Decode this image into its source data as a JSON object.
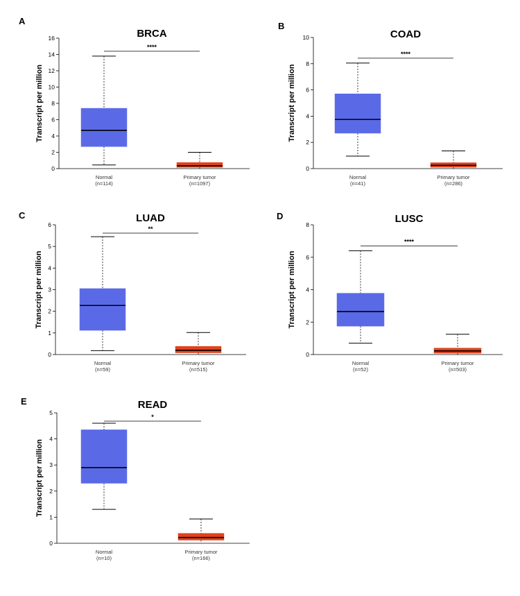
{
  "chart_data": [
    {
      "panel": "A",
      "type": "box",
      "title": "BRCA",
      "ylabel": "Transcript per million",
      "ylim": [
        0,
        16
      ],
      "yticks": [
        0,
        2,
        4,
        6,
        8,
        10,
        12,
        14,
        16
      ],
      "significance": "****",
      "colors": [
        "#5a6ae6",
        "#e0421c"
      ],
      "groups": [
        {
          "name": "Normal",
          "n": "(n=114)",
          "min": 0.45,
          "q1": 2.7,
          "median": 4.7,
          "q3": 7.4,
          "max": 13.8
        },
        {
          "name": "Primary tumor",
          "n": "(n=1097)",
          "min": 0.0,
          "q1": 0.15,
          "median": 0.35,
          "q3": 0.75,
          "max": 2.0
        }
      ]
    },
    {
      "panel": "B",
      "type": "box",
      "title": "COAD",
      "ylabel": "Transcript per million",
      "ylim": [
        0,
        10
      ],
      "yticks": [
        0,
        2,
        4,
        6,
        8,
        10
      ],
      "significance": "****",
      "colors": [
        "#5a6ae6",
        "#e0421c"
      ],
      "groups": [
        {
          "name": "Normal",
          "n": "(n=41)",
          "min": 0.95,
          "q1": 2.7,
          "median": 3.75,
          "q3": 5.7,
          "max": 8.05
        },
        {
          "name": "Primary tumor",
          "n": "(n=286)",
          "min": 0.0,
          "q1": 0.1,
          "median": 0.25,
          "q3": 0.45,
          "max": 1.35
        }
      ]
    },
    {
      "panel": "C",
      "type": "box",
      "title": "LUAD",
      "ylabel": "Transcript per million",
      "ylim": [
        0,
        6
      ],
      "yticks": [
        0,
        1,
        2,
        3,
        4,
        5,
        6
      ],
      "significance": "**",
      "colors": [
        "#5a6ae6",
        "#e0421c"
      ],
      "groups": [
        {
          "name": "Normal",
          "n": "(n=59)",
          "min": 0.18,
          "q1": 1.12,
          "median": 2.27,
          "q3": 3.05,
          "max": 5.45
        },
        {
          "name": "Primary tumor",
          "n": "(n=515)",
          "min": 0.0,
          "q1": 0.08,
          "median": 0.2,
          "q3": 0.38,
          "max": 1.02
        }
      ]
    },
    {
      "panel": "D",
      "type": "box",
      "title": "LUSC",
      "ylabel": "Transcript per million",
      "ylim": [
        0,
        8
      ],
      "yticks": [
        0,
        2,
        4,
        6,
        8
      ],
      "significance": "****",
      "colors": [
        "#5a6ae6",
        "#e0421c"
      ],
      "groups": [
        {
          "name": "Normal",
          "n": "(n=52)",
          "min": 0.7,
          "q1": 1.75,
          "median": 2.65,
          "q3": 3.78,
          "max": 6.4
        },
        {
          "name": "Primary tumor",
          "n": "(n=503)",
          "min": 0.0,
          "q1": 0.08,
          "median": 0.22,
          "q3": 0.4,
          "max": 1.25
        }
      ]
    },
    {
      "panel": "E",
      "type": "box",
      "title": "READ",
      "ylabel": "Transcript per million",
      "ylim": [
        0,
        5
      ],
      "yticks": [
        0,
        1,
        2,
        3,
        4,
        5
      ],
      "significance": "*",
      "colors": [
        "#5a6ae6",
        "#e0421c"
      ],
      "groups": [
        {
          "name": "Normal",
          "n": "(n=10)",
          "min": 1.3,
          "q1": 2.3,
          "median": 2.9,
          "q3": 4.35,
          "max": 4.6
        },
        {
          "name": "Primary tumor",
          "n": "(n=166)",
          "min": 0.0,
          "q1": 0.12,
          "median": 0.22,
          "q3": 0.38,
          "max": 0.93
        }
      ]
    }
  ]
}
